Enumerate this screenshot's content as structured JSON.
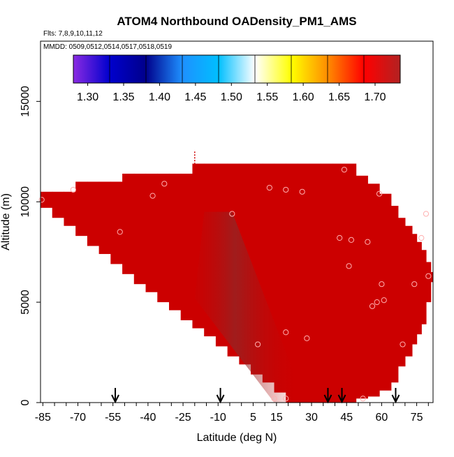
{
  "chart_data": {
    "type": "heatmap",
    "title": "ATOM4 Northbound OADensity_PM1_AMS",
    "subtitle_flights": "Flts: 7,8,9,10,11,12",
    "subtitle_dates": "MMDD: 0509,0512,0514,0517,0518,0519",
    "xlabel": "Latitude (deg N)",
    "ylabel": "Altitude (m)",
    "xlim": [
      -86,
      82
    ],
    "ylim": [
      0,
      18000
    ],
    "x_tick_labels": [
      "-85",
      "-70",
      "-55",
      "-40",
      "-25",
      "-10",
      "5",
      "15",
      "30",
      "45",
      "60",
      "75"
    ],
    "y_ticks": [
      0,
      5000,
      10000,
      15000
    ],
    "colorbar": {
      "min": 1.28,
      "max": 1.735,
      "tick_values": [
        1.3,
        1.35,
        1.4,
        1.45,
        1.5,
        1.55,
        1.6,
        1.65,
        1.7
      ],
      "tick_labels": [
        "1.30",
        "1.35",
        "1.40",
        "1.45",
        "1.50",
        "1.55",
        "1.60",
        "1.65",
        "1.70"
      ],
      "colors": [
        "#8a2be2",
        "#0000cd",
        "#00008b",
        "#1e90ff",
        "#00bfff",
        "#ffffff",
        "#ffff00",
        "#ff8c00",
        "#ff0000",
        "#b22222"
      ]
    },
    "field": {
      "dominant_value": 1.7,
      "dominant_color": "#cc0000",
      "shaded_band_color": "#8b2a2a",
      "envelope": [
        [
          -86,
          9700,
          10500
        ],
        [
          -81,
          9200,
          10500
        ],
        [
          -76,
          8800,
          10500
        ],
        [
          -71,
          8300,
          11000
        ],
        [
          -66,
          7800,
          11000
        ],
        [
          -61,
          7400,
          11000
        ],
        [
          -56,
          6900,
          11000
        ],
        [
          -51,
          6400,
          11400
        ],
        [
          -46,
          5900,
          11400
        ],
        [
          -41,
          5500,
          11400
        ],
        [
          -36,
          5000,
          11400
        ],
        [
          -31,
          4600,
          11400
        ],
        [
          -26,
          4100,
          11400
        ],
        [
          -21,
          3700,
          11900
        ],
        [
          -16,
          3300,
          11900
        ],
        [
          -11,
          2800,
          11900
        ],
        [
          -6,
          2300,
          11900
        ],
        [
          -1,
          1900,
          11900
        ],
        [
          4,
          1400,
          11900
        ],
        [
          9,
          1000,
          11900
        ],
        [
          14,
          500,
          11900
        ],
        [
          19,
          0,
          11900
        ],
        [
          24,
          0,
          11900
        ],
        [
          29,
          0,
          11900
        ],
        [
          34,
          0,
          11900
        ],
        [
          39,
          0,
          11900
        ],
        [
          44,
          0,
          11900
        ],
        [
          49,
          200,
          11300
        ],
        [
          54,
          300,
          10900
        ],
        [
          59,
          600,
          10400
        ],
        [
          64,
          1000,
          9800
        ],
        [
          67,
          1800,
          9200
        ],
        [
          70,
          2300,
          8800
        ],
        [
          73,
          2900,
          8400
        ],
        [
          75,
          3400,
          8000
        ],
        [
          77,
          3900,
          7600
        ],
        [
          79,
          5000,
          7000
        ],
        [
          81,
          6000,
          6500
        ]
      ],
      "vertical_dash_x": -20
    },
    "samples": [
      {
        "x": -85.5,
        "y": 10100
      },
      {
        "x": -72,
        "y": 10600
      },
      {
        "x": -38,
        "y": 10300
      },
      {
        "x": -33,
        "y": 10900
      },
      {
        "x": -52,
        "y": 8500
      },
      {
        "x": -4,
        "y": 9400
      },
      {
        "x": 12,
        "y": 10700
      },
      {
        "x": 19,
        "y": 10600
      },
      {
        "x": 26,
        "y": 10500
      },
      {
        "x": 44,
        "y": 11600
      },
      {
        "x": 59,
        "y": 10400
      },
      {
        "x": 42,
        "y": 8200
      },
      {
        "x": 47,
        "y": 8100
      },
      {
        "x": 54,
        "y": 8000
      },
      {
        "x": 77,
        "y": 8200
      },
      {
        "x": 79,
        "y": 9400
      },
      {
        "x": 46,
        "y": 6800
      },
      {
        "x": 80,
        "y": 6300
      },
      {
        "x": 74,
        "y": 5900
      },
      {
        "x": 60,
        "y": 5900
      },
      {
        "x": 61,
        "y": 5100
      },
      {
        "x": 58,
        "y": 5000
      },
      {
        "x": 56,
        "y": 4800
      },
      {
        "x": 19,
        "y": 3500
      },
      {
        "x": 28,
        "y": 3200
      },
      {
        "x": 7,
        "y": 2900
      },
      {
        "x": 69,
        "y": 2900
      },
      {
        "x": 14,
        "y": 200
      },
      {
        "x": 19,
        "y": 200
      },
      {
        "x": 52,
        "y": 200
      }
    ],
    "flight_arrows_x": [
      -54,
      -9,
      37,
      43,
      66
    ],
    "grid": false,
    "legend": "colorbar-top"
  }
}
